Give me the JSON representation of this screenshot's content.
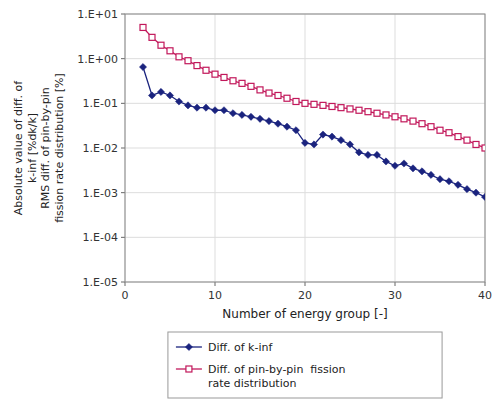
{
  "chart_data": {
    "type": "line",
    "xlabel": "Number of energy group [-]",
    "ylabel": "Absolute value of diff. of\nk-inf [%dk/k]\nRMS diff. of pin-by-pin\nfission rate distribution [%]",
    "x": [
      2,
      3,
      4,
      5,
      6,
      7,
      8,
      9,
      10,
      11,
      12,
      13,
      14,
      15,
      16,
      17,
      18,
      19,
      20,
      21,
      22,
      23,
      24,
      25,
      26,
      27,
      28,
      29,
      30,
      31,
      32,
      33,
      34,
      35,
      36,
      37,
      38,
      39,
      40
    ],
    "series": [
      {
        "name": "Diff. of k-inf",
        "color": "#1a237e",
        "marker": "diamond",
        "values": [
          0.65,
          0.15,
          0.18,
          0.15,
          0.11,
          0.09,
          0.08,
          0.08,
          0.07,
          0.07,
          0.06,
          0.055,
          0.05,
          0.045,
          0.04,
          0.035,
          0.03,
          0.025,
          0.013,
          0.012,
          0.02,
          0.018,
          0.015,
          0.012,
          0.008,
          0.007,
          0.007,
          0.005,
          0.004,
          0.0045,
          0.0035,
          0.003,
          0.0025,
          0.002,
          0.0018,
          0.0015,
          0.0012,
          0.001,
          0.0008
        ]
      },
      {
        "name": "Diff. of pin-by-pin  fission\nrate distribution",
        "color": "#c2185b",
        "marker": "open-square",
        "values": [
          5.0,
          3.0,
          2.0,
          1.5,
          1.1,
          0.9,
          0.7,
          0.55,
          0.45,
          0.38,
          0.32,
          0.28,
          0.24,
          0.2,
          0.17,
          0.15,
          0.13,
          0.11,
          0.1,
          0.095,
          0.09,
          0.085,
          0.08,
          0.075,
          0.07,
          0.065,
          0.06,
          0.055,
          0.05,
          0.045,
          0.04,
          0.035,
          0.03,
          0.025,
          0.022,
          0.018,
          0.015,
          0.012,
          0.01
        ]
      }
    ],
    "xlim": [
      0,
      40
    ],
    "xticks": [
      0,
      10,
      20,
      30,
      40
    ],
    "ylim": [
      1e-05,
      10
    ],
    "yticks": [
      {
        "value": 1e-05,
        "label": "1.E-05"
      },
      {
        "value": 0.0001,
        "label": "1.E-04"
      },
      {
        "value": 0.001,
        "label": "1.E-03"
      },
      {
        "value": 0.01,
        "label": "1.E-02"
      },
      {
        "value": 0.1,
        "label": "1.E-01"
      },
      {
        "value": 1,
        "label": "1.E+00"
      },
      {
        "value": 10,
        "label": "1.E+01"
      }
    ],
    "log": "y",
    "grid": true,
    "legend": "bottom"
  }
}
